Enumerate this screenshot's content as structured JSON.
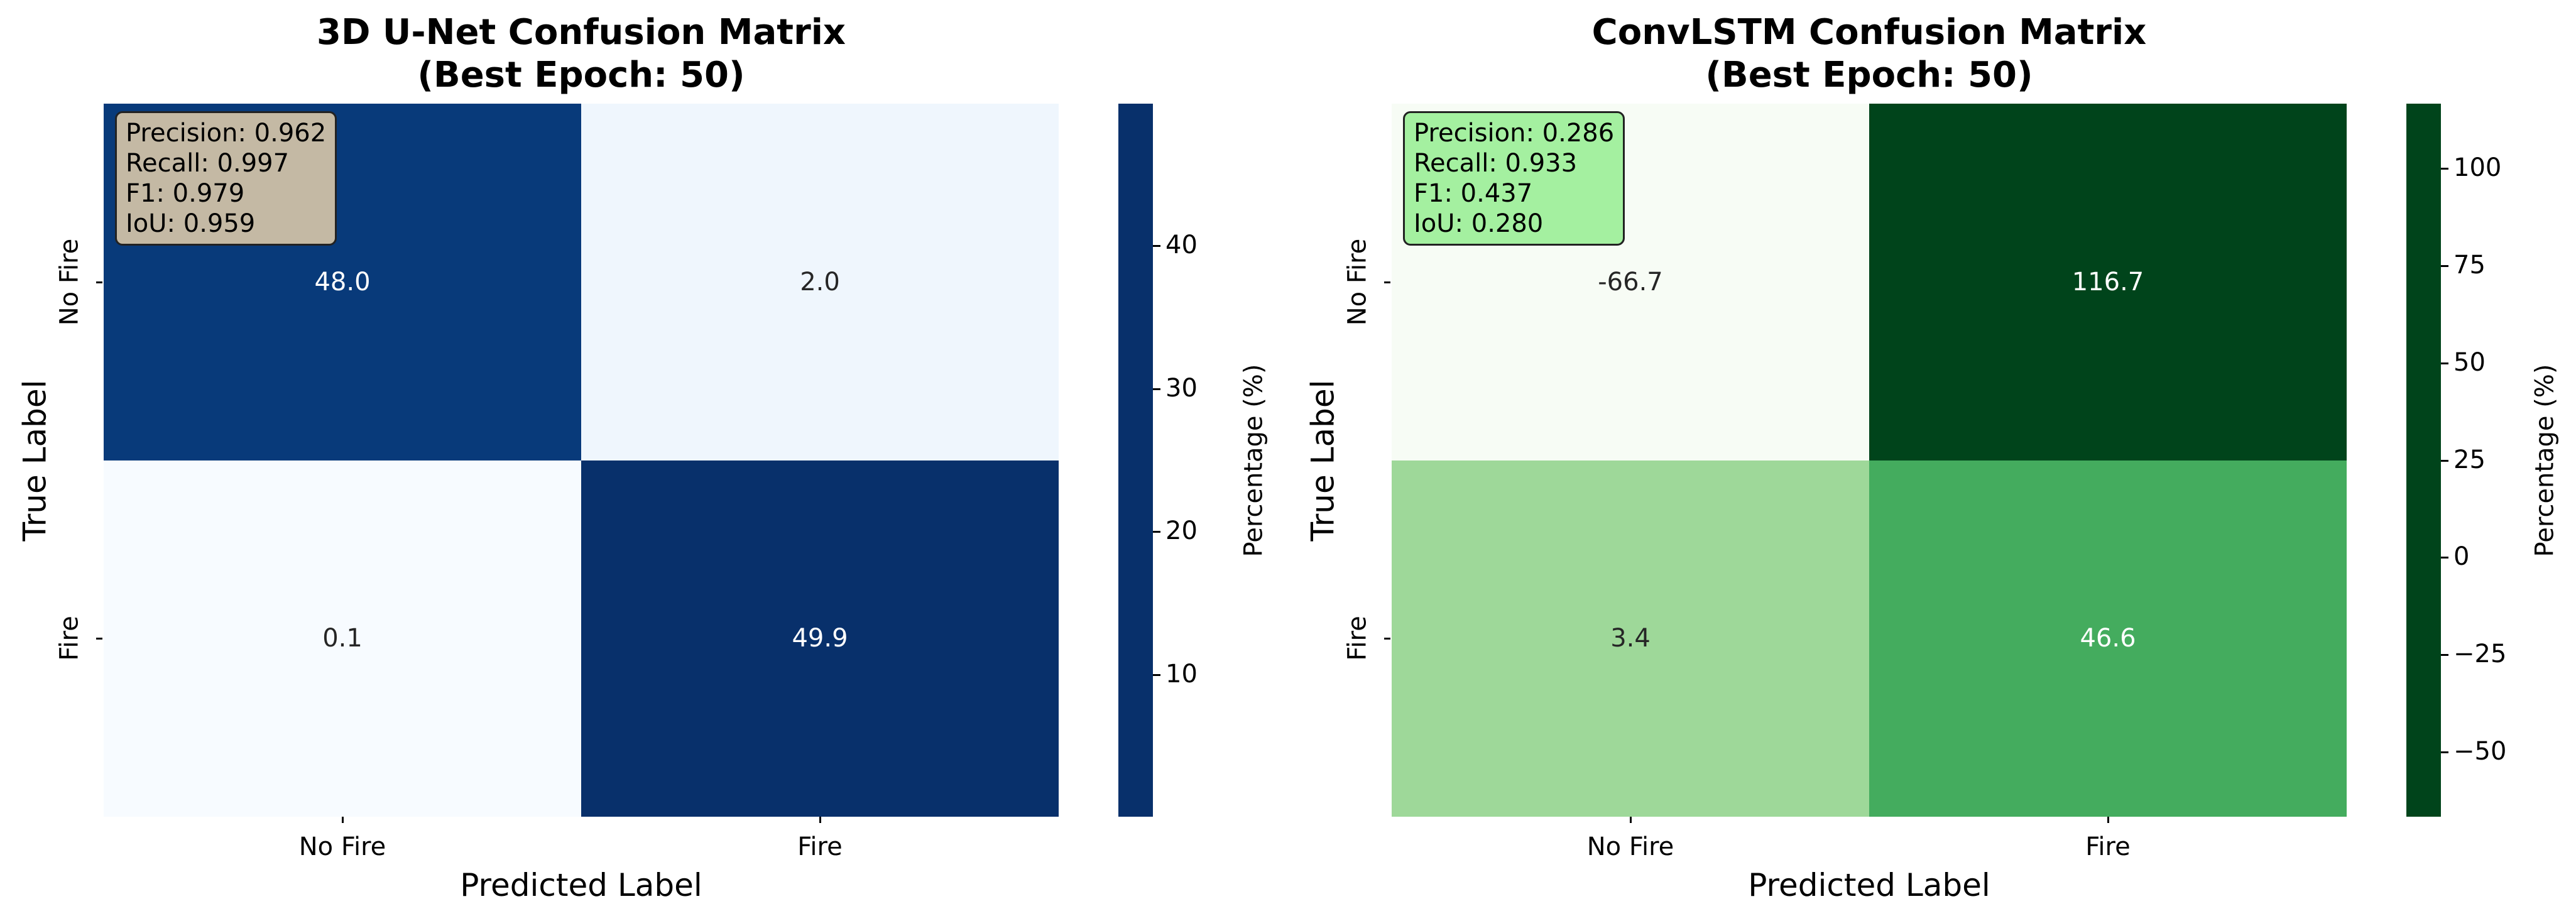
{
  "chart_data": [
    {
      "type": "heatmap",
      "title_line1": "3D U-Net Confusion Matrix",
      "title_line2": "(Best Epoch: 50)",
      "xlabel": "Predicted Label",
      "ylabel": "True Label",
      "x_categories": [
        "No Fire",
        "Fire"
      ],
      "y_categories": [
        "No Fire",
        "Fire"
      ],
      "values": [
        [
          48.0,
          2.0
        ],
        [
          0.1,
          49.9
        ]
      ],
      "cell_labels": [
        [
          "48.0",
          "2.0"
        ],
        [
          "0.1",
          "49.9"
        ]
      ],
      "colormap": "Blues",
      "color_min": 0.1,
      "color_max": 49.9,
      "colorbar_label": "Percentage (%)",
      "colorbar_ticks": [
        10,
        20,
        30,
        40
      ],
      "colorbar_tick_labels": [
        "10",
        "20",
        "30",
        "40"
      ],
      "metrics_box_color": "#c4b9a4",
      "metrics": [
        "Precision: 0.962",
        "Recall: 0.997",
        "F1: 0.979",
        "IoU: 0.959"
      ]
    },
    {
      "type": "heatmap",
      "title_line1": "ConvLSTM Confusion Matrix",
      "title_line2": "(Best Epoch: 50)",
      "xlabel": "Predicted Label",
      "ylabel": "True Label",
      "x_categories": [
        "No Fire",
        "Fire"
      ],
      "y_categories": [
        "No Fire",
        "Fire"
      ],
      "values": [
        [
          -66.7,
          116.7
        ],
        [
          3.4,
          46.6
        ]
      ],
      "cell_labels": [
        [
          "-66.7",
          "116.7"
        ],
        [
          "3.4",
          "46.6"
        ]
      ],
      "colormap": "Greens",
      "color_min": -66.7,
      "color_max": 116.7,
      "colorbar_label": "Percentage (%)",
      "colorbar_ticks": [
        -50,
        -25,
        0,
        25,
        50,
        75,
        100
      ],
      "colorbar_tick_labels": [
        "−50",
        "−25",
        "0",
        "25",
        "50",
        "75",
        "100"
      ],
      "metrics_box_color": "#a4f0a0",
      "metrics": [
        "Precision: 0.286",
        "Recall: 0.933",
        "F1: 0.437",
        "IoU: 0.280"
      ]
    }
  ]
}
